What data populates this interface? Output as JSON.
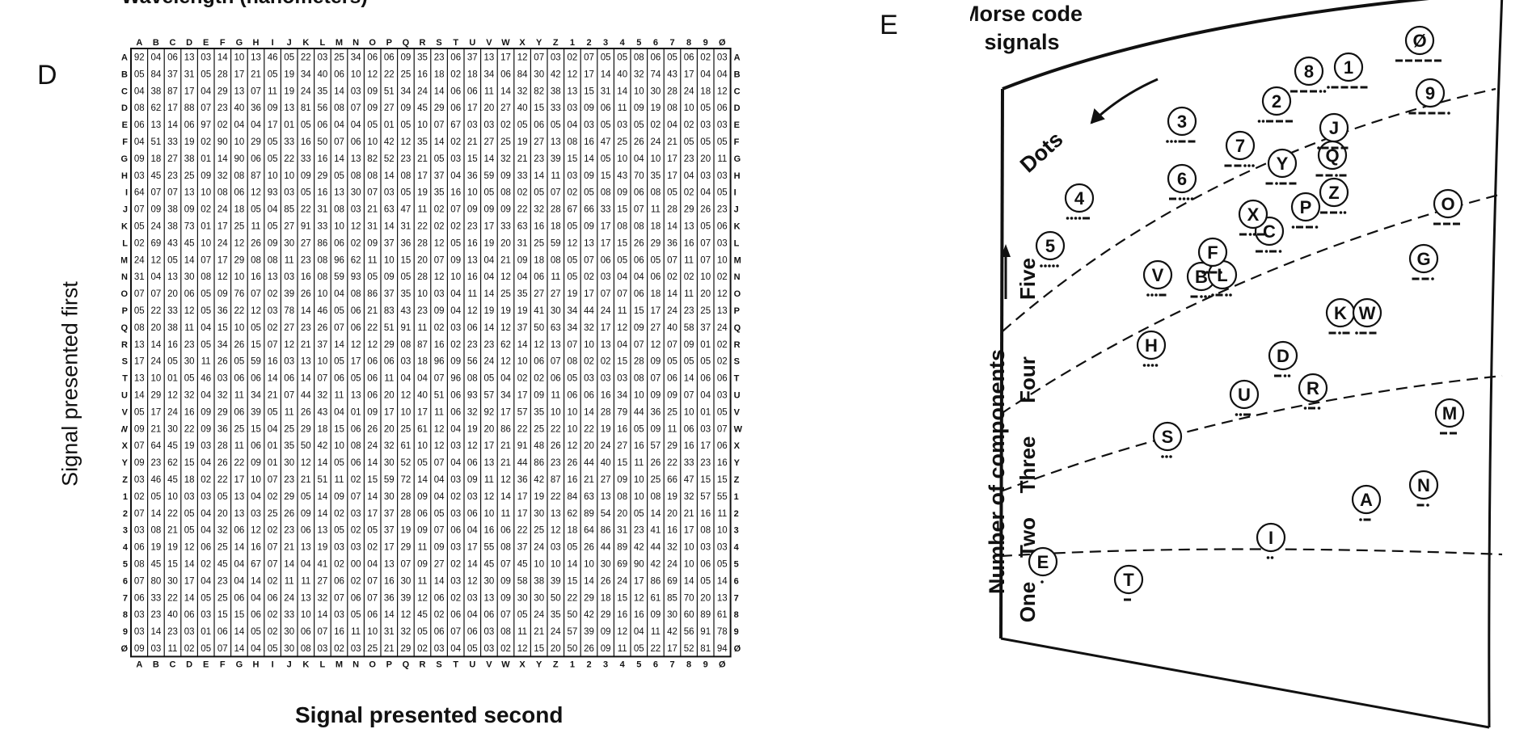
{
  "panel_d": {
    "letter": "D",
    "top_caption": "Wavelength (nanometers)",
    "ylabel": "Signal presented first",
    "xlabel": "Signal presented second",
    "signals": [
      "A",
      "B",
      "C",
      "D",
      "E",
      "F",
      "G",
      "H",
      "I",
      "J",
      "K",
      "L",
      "M",
      "N",
      "O",
      "P",
      "Q",
      "R",
      "S",
      "T",
      "U",
      "V",
      "W",
      "X",
      "Y",
      "Z",
      "1",
      "2",
      "3",
      "4",
      "5",
      "6",
      "7",
      "8",
      "9",
      "Ø"
    ],
    "matrix_rows": [
      "92 04 06 13 03 14 10 13 46 05 22 03 25 34 06 06 09 35 23 06 37 13 17 12 07 03 02 07 05 05 08 06 05 06 02 03",
      "05 84 37 31 05 28 17 21 05 19 34 40 06 10 12 22 25 16 18 02 18 34 06 84 30 42 12 17 14 40 32 74 43 17 04 04",
      "04 38 87 17 04 29 13 07 11 19 24 35 14 03 09 51 34 24 14 06 06 11 14 32 82 38 13 15 31 14 10 30 28 24 18 12",
      "08 62 17 88 07 23 40 36 09 13 81 56 08 07 09 27 09 45 29 06 17 20 27 40 15 33 03 09 06 11 09 19 08 10 05 06",
      "06 13 14 06 97 02 04 04 17 01 05 06 04 04 05 01 05 10 07 67 03 03 02 05 06 05 04 03 05 03 05 02 04 02 03 03",
      "04 51 33 19 02 90 10 29 05 33 16 50 07 06 10 42 12 35 14 02 21 27 25 19 27 13 08 16 47 25 26 24 21 05 05 05",
      "09 18 27 38 01 14 90 06 05 22 33 16 14 13 82 52 23 21 05 03 15 14 32 21 23 39 15 14 05 10 04 10 17 23 20 11",
      "03 45 23 25 09 32 08 87 10 10 09 29 05 08 08 14 08 17 37 04 36 59 09 33 14 11 03 09 15 43 70 35 17 04 03 03",
      "64 07 07 13 10 08 06 12 93 03 05 16 13 30 07 03 05 19 35 16 10 05 08 02 05 07 02 05 08 09 06 08 05 02 04 05",
      "07 09 38 09 02 24 18 05 04 85 22 31 08 03 21 63 47 11 02 07 09 09 09 22 32 28 67 66 33 15 07 11 28 29 26 23",
      "05 24 38 73 01 17 25 11 05 27 91 33 10 12 31 14 31 22 02 02 23 17 33 63 16 18 05 09 17 08 08 18 14 13 05 06",
      "02 69 43 45 10 24 12 26 09 30 27 86 06 02 09 37 36 28 12 05 16 19 20 31 25 59 12 13 17 15 26 29 36 16 07 03",
      "24 12 05 14 07 17 29 08 08 11 23 08 96 62 11 10 15 20 07 09 13 04 21 09 18 08 05 07 06 05 06 05 07 11 07 10",
      "31 04 13 30 08 12 10 16 13 03 16 08 59 93 05 09 05 28 12 10 16 04 12 04 06 11 05 02 03 04 04 06 02 02 10 02",
      "07 07 20 06 05 09 76 07 02 39 26 10 04 08 86 37 35 10 03 04 11 14 25 35 27 27 19 17 07 07 06 18 14 11 20 12",
      "05 22 33 12 05 36 22 12 03 78 14 46 05 06 21 83 43 23 09 04 12 19 19 19 41 30 34 44 24 11 15 17 24 23 25 13",
      "08 20 38 11 04 15 10 05 02 27 23 26 07 06 22 51 91 11 02 03 06 14 12 37 50 63 34 32 17 12 09 27 40 58 37 24",
      "13 14 16 23 05 34 26 15 07 12 21 37 14 12 12 29 08 87 16 02 23 23 62 14 12 13 07 10 13 04 07 12 07 09 01 02",
      "17 24 05 30 11 26 05 59 16 03 13 10 05 17 06 06 03 18 96 09 56 24 12 10 06 07 08 02 02 15 28 09 05 05 05 02",
      "13 10 01 05 46 03 06 06 14 06 14 07 06 05 06 11 04 04 07 96 08 05 04 02 02 06 05 03 03 03 08 07 06 14 06 06",
      "14 29 12 32 04 32 11 34 21 07 44 32 11 13 06 20 12 40 51 06 93 57 34 17 09 11 06 06 16 34 10 09 09 07 04 03",
      "05 17 24 16 09 29 06 39 05 11 26 43 04 01 09 17 10 17 11 06 32 92 17 57 35 10 10 14 28 79 44 36 25 10 01 05",
      "09 21 30 22 09 36 25 15 04 25 29 18 15 06 26 20 25 61 12 04 19 20 86 22 25 22 10 22 19 16 05 09 11 06 03 07",
      "07 64 45 19 03 28 11 06 01 35 50 42 10 08 24 32 61 10 12 03 12 17 21 91 48 26 12 20 24 27 16 57 29 16 17 06",
      "09 23 62 15 04 26 22 09 01 30 12 14 05 06 14 30 52 05 07 04 06 13 21 44 86 23 26 44 40 15 11 26 22 33 23 16",
      "03 46 45 18 02 22 17 10 07 23 21 51 11 02 15 59 72 14 04 03 09 11 12 36 42 87 16 21 27 09 10 25 66 47 15 15",
      "02 05 10 03 03 05 13 04 02 29 05 14 09 07 14 30 28 09 04 02 03 12 14 17 19 22 84 63 13 08 10 08 19 32 57 55",
      "07 14 22 05 04 20 13 03 25 26 09 14 02 03 17 37 28 06 05 03 06 10 11 17 30 13 62 89 54 20 05 14 20 21 16 11",
      "03 08 21 05 04 32 06 12 02 23 06 13 05 02 05 37 19 09 07 06 04 16 06 22 25 12 18 64 86 31 23 41 16 17 08 10",
      "06 19 19 12 06 25 14 16 07 21 13 19 03 03 02 17 29 11 09 03 17 55 08 37 24 03 05 26 44 89 42 44 32 10 03 03",
      "08 45 15 14 02 45 04 67 07 14 04 41 02 00 04 13 07 09 27 02 14 45 07 45 10 10 14 10 30 69 90 42 24 10 06 05",
      "07 80 30 17 04 23 04 14 02 11 11 27 06 02 07 16 30 11 14 03 12 30 09 58 38 39 15 14 26 24 17 86 69 14 05 14",
      "06 33 22 14 05 25 06 04 06 24 13 32 07 06 07 36 39 12 06 02 03 13 09 30 30 50 22 29 18 15 12 61 85 70 20 13",
      "03 23 40 06 03 15 15 06 02 33 10 14 03 05 06 14 12 45 02 06 04 06 07 05 24 35 50 42 29 16 16 09 30 60 89 61",
      "03 14 23 03 01 06 14 05 02 30 06 07 16 11 10 31 32 05 06 07 06 03 08 11 21 24 57 39 09 12 04 11 42 56 91 78",
      "09 03 11 02 05 07 14 04 05 30 08 03 02 03 25 21 29 02 03 04 05 03 02 12 15 20 50 26 09 11 05 22 17 52 81 94"
    ]
  },
  "panel_e": {
    "letter": "E",
    "title_line1": "Morse code",
    "title_line2": "signals",
    "dots_label": "Dots",
    "axis_label": "Number of components",
    "bands": [
      "One",
      "Two",
      "Three",
      "Four",
      "Five"
    ],
    "signals": [
      {
        "label": "E",
        "code": "."
      },
      {
        "label": "T",
        "code": "-"
      },
      {
        "label": "I",
        "code": ".."
      },
      {
        "label": "A",
        "code": ".-"
      },
      {
        "label": "N",
        "code": "-."
      },
      {
        "label": "M",
        "code": "--"
      },
      {
        "label": "S",
        "code": "..."
      },
      {
        "label": "U",
        "code": "..-"
      },
      {
        "label": "D",
        "code": "-.."
      },
      {
        "label": "R",
        "code": ".-."
      },
      {
        "label": "K",
        "code": "-.-"
      },
      {
        "label": "W",
        "code": ".--"
      },
      {
        "label": "H",
        "code": "...."
      },
      {
        "label": "V",
        "code": "...-"
      },
      {
        "label": "B",
        "code": "-..."
      },
      {
        "label": "L",
        "code": ".-.."
      },
      {
        "label": "F",
        "code": "..-."
      },
      {
        "label": "C",
        "code": "-.-."
      },
      {
        "label": "X",
        "code": "-..-"
      },
      {
        "label": "P",
        "code": ".--."
      },
      {
        "label": "Y",
        "code": "-.--"
      },
      {
        "label": "Z",
        "code": "--.."
      },
      {
        "label": "Q",
        "code": "--.-"
      },
      {
        "label": "J",
        "code": ".---"
      },
      {
        "label": "G",
        "code": "--."
      },
      {
        "label": "O",
        "code": "---"
      },
      {
        "label": "5",
        "code": "....."
      },
      {
        "label": "4",
        "code": "....-"
      },
      {
        "label": "6",
        "code": "-...."
      },
      {
        "label": "3",
        "code": "...--"
      },
      {
        "label": "7",
        "code": "--..."
      },
      {
        "label": "2",
        "code": "..---"
      },
      {
        "label": "8",
        "code": "---.."
      },
      {
        "label": "1",
        "code": ".----"
      },
      {
        "label": "9",
        "code": "----."
      },
      {
        "label": "Ø",
        "code": "-----"
      }
    ]
  }
}
